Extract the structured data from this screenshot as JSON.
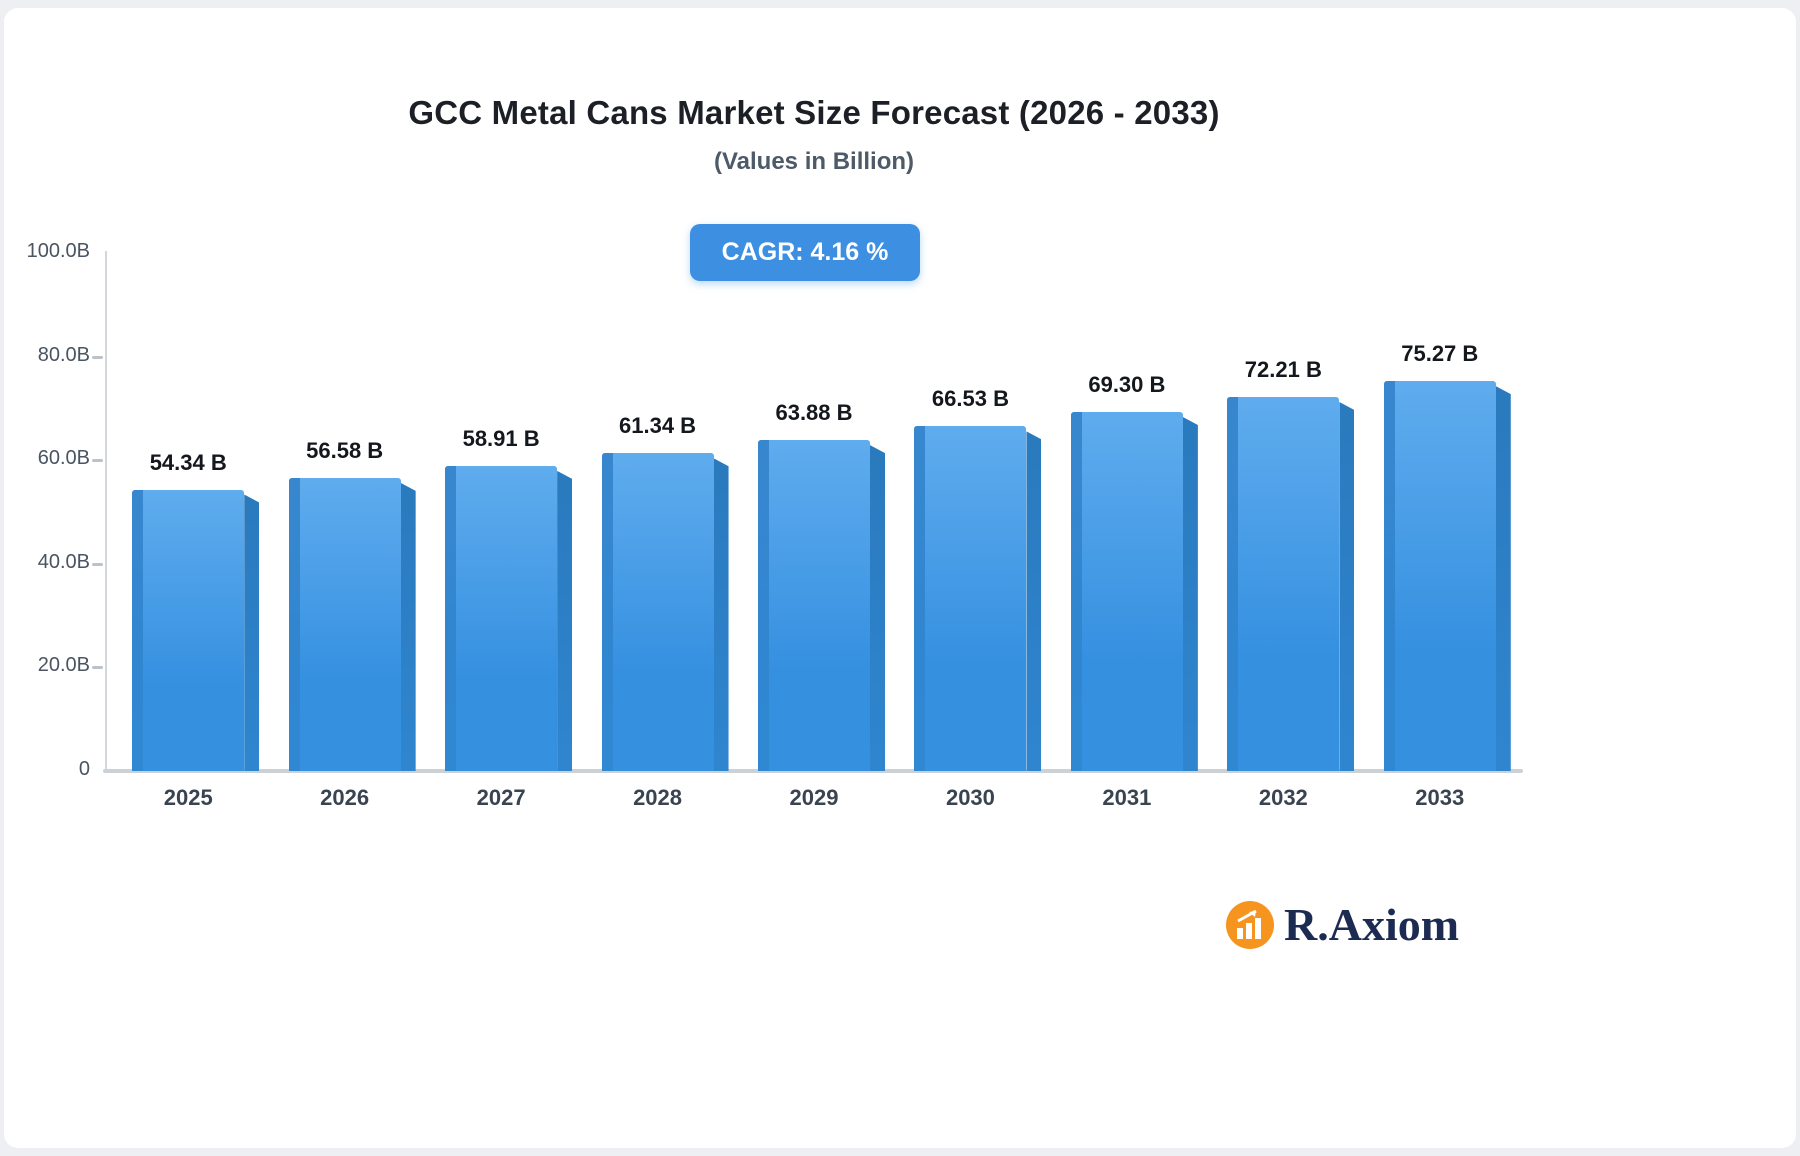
{
  "page": {
    "background": "#EDEFF2",
    "card_background": "#FFFFFF"
  },
  "header": {
    "title": "GCC Metal Cans Market Size Forecast (2026 - 2033)",
    "subtitle": "(Values in Billion)"
  },
  "badge": {
    "label": "CAGR: 4.16 %",
    "background": "#3D8FE2",
    "text_color": "#FFFFFF"
  },
  "brand": {
    "name": "R.Axiom",
    "icon": "bar-chart-logo-icon",
    "icon_background": "#F5941F",
    "text_color": "#1D2B52"
  },
  "chart_data": {
    "type": "bar",
    "title": "GCC Metal Cans Market Size Forecast (2026 - 2033)",
    "subtitle": "(Values in Billion)",
    "annotation": "CAGR: 4.16 %",
    "categories": [
      "2025",
      "2026",
      "2027",
      "2028",
      "2029",
      "2030",
      "2031",
      "2032",
      "2033"
    ],
    "values": [
      54.34,
      56.58,
      58.91,
      61.34,
      63.88,
      66.53,
      69.3,
      72.21,
      75.27
    ],
    "value_labels": [
      "54.34 B",
      "56.58 B",
      "58.91 B",
      "61.34 B",
      "63.88 B",
      "66.53 B",
      "69.30 B",
      "72.21 B",
      "75.27 B"
    ],
    "xlabel": "",
    "ylabel": "",
    "ylim": [
      0,
      100
    ],
    "ytick_values": [
      0,
      20,
      40,
      60,
      80,
      100
    ],
    "ytick_labels": [
      "0",
      "20.0B",
      "40.0B",
      "60.0B",
      "80.0B",
      "100.0B"
    ],
    "grid": false,
    "legend": "none",
    "bar_color_top": "#5FACEE",
    "bar_color_bottom": "#3590E0",
    "bar_side_color": "#2A79BD"
  }
}
